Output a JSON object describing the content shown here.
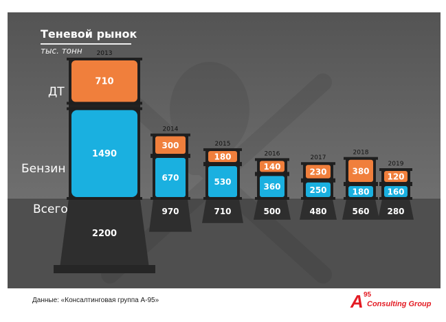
{
  "title": "Теневой рынок",
  "unit": "тыс. тонн",
  "row_labels": {
    "diesel": "ДТ",
    "gasoline": "Бензин",
    "total": "Всего"
  },
  "source": "Данные: «Консалтинговая группа А-95»",
  "logo": {
    "mark": "A",
    "number": "95",
    "text": "Consulting Group"
  },
  "colors": {
    "diesel": "#f07f3c",
    "gasoline": "#1ab0e0",
    "background_top": "#6b6b6b",
    "background_bottom": "#4d4d4d",
    "pedestal": "#2e2e2e",
    "logo": "#e31b23"
  },
  "chart_data": {
    "type": "bar",
    "stacked": true,
    "categories": [
      "2013",
      "2014",
      "2015",
      "2016",
      "2017",
      "2018",
      "2019"
    ],
    "series": [
      {
        "name": "ДТ",
        "values": [
          710,
          300,
          180,
          140,
          230,
          380,
          120
        ]
      },
      {
        "name": "Бензин",
        "values": [
          1490,
          670,
          530,
          360,
          250,
          180,
          160
        ]
      }
    ],
    "totals": [
      2200,
      970,
      710,
      500,
      480,
      560,
      280
    ],
    "title": "Теневой рынок",
    "ylabel": "тыс. тонн",
    "grid": false,
    "legend": "left"
  }
}
